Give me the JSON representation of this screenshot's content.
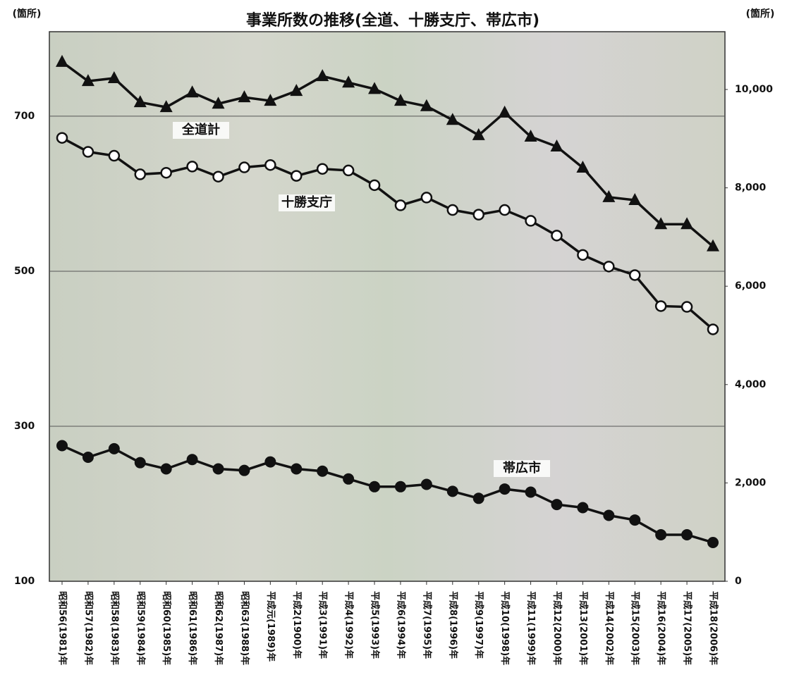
{
  "chart_data": {
    "type": "line",
    "title": "事業所数の推移(全道、十勝支庁、帯広市)",
    "y_label": "(箇所)",
    "y2_label": "(箇所)",
    "categories": [
      "昭和56(1981)年",
      "昭和57(1982)年",
      "昭和58(1983)年",
      "昭和59(1984)年",
      "昭和60(1985)年",
      "昭和61(1986)年",
      "昭和62(1987)年",
      "昭和63(1988)年",
      "平成元(1989)年",
      "平成2(1900)年",
      "平成3(1991)年",
      "平成4(1992)年",
      "平成5(1993)年",
      "平成6(1994)年",
      "平成7(1995)年",
      "平成8(1996)年",
      "平成9(1997)年",
      "平成10(1998)年",
      "平成11(1999)年",
      "平成12(2000)年",
      "平成13(2001)年",
      "平成14(2002)年",
      "平成15(2003)年",
      "平成16(2004)年",
      "平成17(2005)年",
      "平成18(2006)年"
    ],
    "series": [
      {
        "name": "全道計",
        "color": "#111111",
        "marker": "triangle",
        "axis": "y2",
        "values": [
          10560,
          10170,
          10230,
          9740,
          9640,
          9940,
          9710,
          9840,
          9770,
          9970,
          10270,
          10140,
          10010,
          9770,
          9660,
          9380,
          9070,
          9530,
          9040,
          8840,
          8410,
          7810,
          7750,
          7260,
          7260,
          6810
        ]
      },
      {
        "name": "十勝支庁",
        "color": "#111111",
        "marker": "open-circle",
        "values": [
          672,
          654,
          649,
          625,
          627,
          635,
          622,
          634,
          637,
          623,
          632,
          630,
          611,
          585,
          595,
          579,
          573,
          579,
          565,
          546,
          521,
          506,
          495,
          455,
          454,
          425
        ]
      },
      {
        "name": "帯広市",
        "color": "#111111",
        "marker": "circle",
        "values": [
          275,
          260,
          271,
          253,
          245,
          257,
          245,
          243,
          254,
          245,
          242,
          232,
          222,
          222,
          225,
          216,
          207,
          219,
          215,
          199,
          195,
          185,
          179,
          160,
          160,
          150
        ]
      }
    ],
    "ylim": [
      100,
      809
    ],
    "yticks": [
      100,
      300,
      500,
      700
    ],
    "y2lim": [
      0,
      11175
    ],
    "y2ticks": [
      0,
      {
        "value": 2000,
        "label": "2,000"
      },
      {
        "value": 4000,
        "label": "4,000"
      },
      {
        "value": 6000,
        "label": "6,000"
      },
      {
        "value": 8000,
        "label": "8,000"
      },
      {
        "value": 10000,
        "label": "10,000"
      }
    ],
    "grid": true
  }
}
